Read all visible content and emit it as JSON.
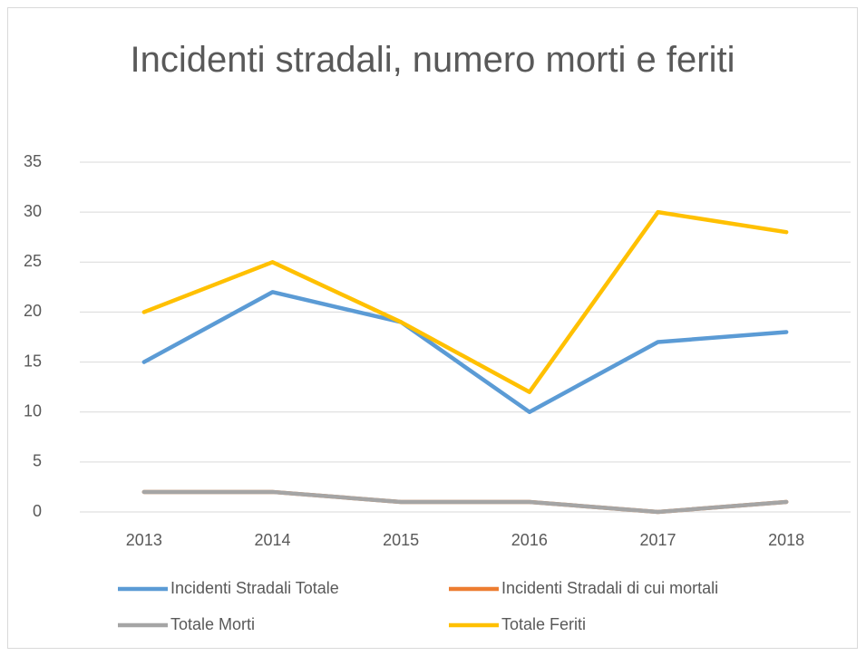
{
  "chart_data": {
    "type": "line",
    "title": "Incidenti stradali, numero morti e feriti",
    "categories": [
      "2013",
      "2014",
      "2015",
      "2016",
      "2017",
      "2018"
    ],
    "series": [
      {
        "name": "Incidenti Stradali Totale",
        "color": "#5b9bd5",
        "values": [
          15,
          22,
          19,
          10,
          17,
          18
        ]
      },
      {
        "name": "Incidenti Stradali di cui mortali",
        "color": "#ed7d31",
        "values": [
          2,
          2,
          1,
          1,
          0,
          1
        ]
      },
      {
        "name": "Totale Morti",
        "color": "#a5a5a5",
        "values": [
          2,
          2,
          1,
          1,
          0,
          1
        ]
      },
      {
        "name": "Totale Feriti",
        "color": "#ffc000",
        "values": [
          20,
          25,
          19,
          12,
          30,
          28
        ]
      }
    ],
    "ylim": [
      0,
      35
    ],
    "yticks": [
      0,
      5,
      10,
      15,
      20,
      25,
      30,
      35
    ],
    "grid": true,
    "legend": "bottom"
  }
}
